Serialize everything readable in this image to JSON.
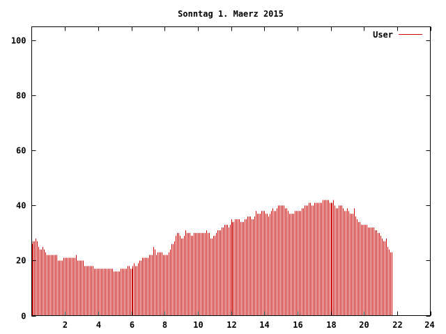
{
  "chart_data": {
    "type": "bar",
    "title": "Sonntag 1. Maerz 2015",
    "xlabel": "",
    "ylabel": "",
    "xlim": [
      0,
      24
    ],
    "ylim": [
      0,
      105
    ],
    "grid": false,
    "legend_position": "top-right",
    "x_ticks": [
      "2",
      "4",
      "6",
      "8",
      "10",
      "12",
      "14",
      "16",
      "18",
      "20",
      "22",
      "24"
    ],
    "x_tick_values": [
      2,
      4,
      6,
      8,
      10,
      12,
      14,
      16,
      18,
      20,
      22,
      24
    ],
    "y_ticks": [
      "0",
      "20",
      "40",
      "60",
      "80",
      "100"
    ],
    "y_tick_values": [
      0,
      20,
      40,
      60,
      80,
      100
    ],
    "interval_minutes": 5,
    "series": [
      {
        "name": "User",
        "color": "#cc0000",
        "values": [
          26,
          27,
          27,
          28,
          27,
          25,
          24,
          24,
          25,
          24,
          23,
          22,
          22,
          22,
          22,
          22,
          22,
          22,
          22,
          20,
          20,
          20,
          20,
          21,
          21,
          21,
          21,
          21,
          21,
          21,
          21,
          21,
          22,
          20,
          20,
          20,
          20,
          20,
          18,
          18,
          18,
          18,
          18,
          18,
          18,
          17,
          17,
          17,
          17,
          17,
          17,
          17,
          17,
          17,
          17,
          17,
          17,
          17,
          17,
          16,
          16,
          16,
          16,
          16,
          17,
          17,
          17,
          17,
          17,
          18,
          18,
          17,
          17,
          18,
          19,
          18,
          18,
          19,
          20,
          20,
          21,
          21,
          21,
          21,
          21,
          22,
          22,
          22,
          25,
          24,
          22,
          23,
          23,
          23,
          23,
          22,
          22,
          22,
          22,
          23,
          24,
          26,
          26,
          27,
          29,
          30,
          30,
          29,
          28,
          28,
          29,
          31,
          30,
          30,
          30,
          29,
          29,
          30,
          30,
          30,
          30,
          30,
          30,
          30,
          30,
          30,
          31,
          30,
          30,
          28,
          28,
          29,
          29,
          30,
          31,
          31,
          31,
          32,
          32,
          33,
          33,
          33,
          32,
          33,
          35,
          34,
          34,
          35,
          35,
          35,
          35,
          34,
          34,
          34,
          35,
          35,
          36,
          36,
          36,
          35,
          35,
          36,
          38,
          37,
          37,
          37,
          38,
          38,
          38,
          37,
          37,
          36,
          37,
          38,
          39,
          38,
          38,
          39,
          40,
          40,
          40,
          40,
          40,
          39,
          39,
          38,
          37,
          37,
          37,
          37,
          38,
          38,
          38,
          38,
          38,
          39,
          39,
          40,
          40,
          40,
          41,
          41,
          40,
          40,
          41,
          41,
          41,
          41,
          41,
          41,
          42,
          42,
          42,
          42,
          42,
          41,
          41,
          41,
          42,
          40,
          39,
          39,
          40,
          40,
          40,
          39,
          38,
          38,
          39,
          38,
          37,
          37,
          37,
          39,
          36,
          35,
          34,
          34,
          33,
          33,
          33,
          33,
          33,
          32,
          32,
          32,
          32,
          32,
          31,
          31,
          30,
          30,
          29,
          28,
          27,
          27,
          28,
          25,
          24,
          23,
          23
        ]
      }
    ]
  }
}
